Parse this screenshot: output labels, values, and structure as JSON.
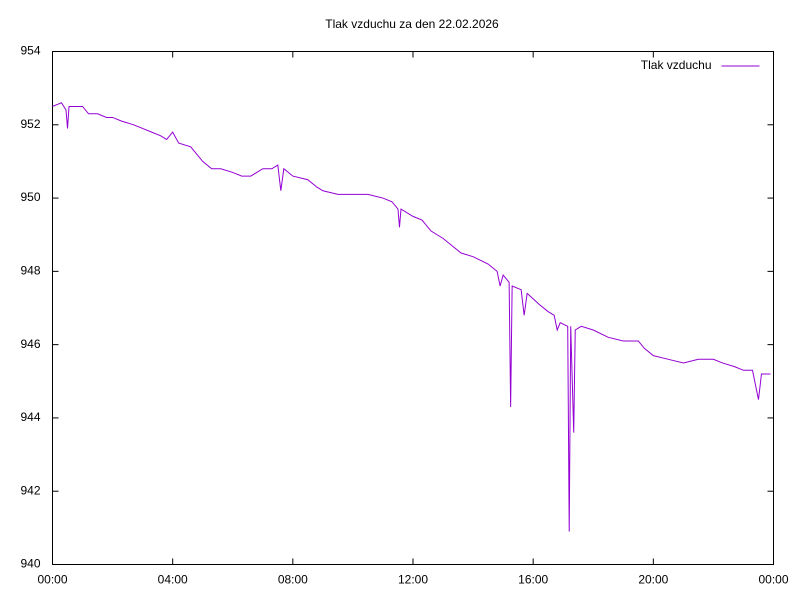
{
  "chart_data": {
    "type": "line",
    "title": "Tlak vzduchu za den 22.02.2026",
    "legend": "top-right",
    "xlim": [
      0,
      24
    ],
    "xticks": [
      {
        "value": 0,
        "label": "00:00"
      },
      {
        "value": 4,
        "label": "04:00"
      },
      {
        "value": 8,
        "label": "08:00"
      },
      {
        "value": 12,
        "label": "12:00"
      },
      {
        "value": 16,
        "label": "16:00"
      },
      {
        "value": 20,
        "label": "20:00"
      },
      {
        "value": 24,
        "label": "00:00"
      }
    ],
    "ylim": [
      940,
      954
    ],
    "yticks": [
      940,
      942,
      944,
      946,
      948,
      950,
      952,
      954
    ],
    "grid": false,
    "x": [
      0.0,
      0.3,
      0.45,
      0.5,
      0.55,
      1.0,
      1.2,
      1.5,
      1.8,
      2.0,
      2.3,
      2.7,
      3.0,
      3.3,
      3.6,
      3.8,
      4.0,
      4.2,
      4.6,
      5.0,
      5.3,
      5.6,
      6.0,
      6.3,
      6.6,
      7.0,
      7.3,
      7.5,
      7.6,
      7.7,
      8.0,
      8.5,
      8.8,
      9.0,
      9.5,
      10.0,
      10.3,
      10.5,
      11.0,
      11.3,
      11.5,
      11.55,
      11.6,
      12.0,
      12.3,
      12.6,
      13.0,
      13.3,
      13.6,
      14.0,
      14.5,
      14.8,
      14.9,
      15.0,
      15.2,
      15.25,
      15.3,
      15.6,
      15.7,
      15.8,
      16.2,
      16.5,
      16.7,
      16.8,
      16.9,
      17.15,
      17.2,
      17.25,
      17.35,
      17.4,
      17.6,
      18.0,
      18.5,
      19.0,
      19.5,
      19.7,
      20.0,
      20.5,
      21.0,
      21.5,
      22.0,
      22.3,
      22.7,
      23.0,
      23.3,
      23.5,
      23.6,
      23.9
    ],
    "series": [
      {
        "name": "Tlak vzduchu",
        "color": "#9400d3",
        "values": [
          952.5,
          952.6,
          952.4,
          951.9,
          952.5,
          952.5,
          952.3,
          952.3,
          952.2,
          952.2,
          952.1,
          952.0,
          951.9,
          951.8,
          951.7,
          951.6,
          951.8,
          951.5,
          951.4,
          951.0,
          950.8,
          950.8,
          950.7,
          950.6,
          950.6,
          950.8,
          950.8,
          950.9,
          950.2,
          950.8,
          950.6,
          950.5,
          950.3,
          950.2,
          950.1,
          950.1,
          950.1,
          950.1,
          950.0,
          949.9,
          949.7,
          949.2,
          949.7,
          949.5,
          949.4,
          949.1,
          948.9,
          948.7,
          948.5,
          948.4,
          948.2,
          948.0,
          947.6,
          947.9,
          947.7,
          944.3,
          947.6,
          947.5,
          946.8,
          947.4,
          947.1,
          946.9,
          946.8,
          946.4,
          946.6,
          946.5,
          940.9,
          946.5,
          943.6,
          946.4,
          946.5,
          946.4,
          946.2,
          946.1,
          946.1,
          945.9,
          945.7,
          945.6,
          945.5,
          945.6,
          945.6,
          945.5,
          945.4,
          945.3,
          945.3,
          944.5,
          945.2,
          945.2
        ]
      }
    ]
  }
}
